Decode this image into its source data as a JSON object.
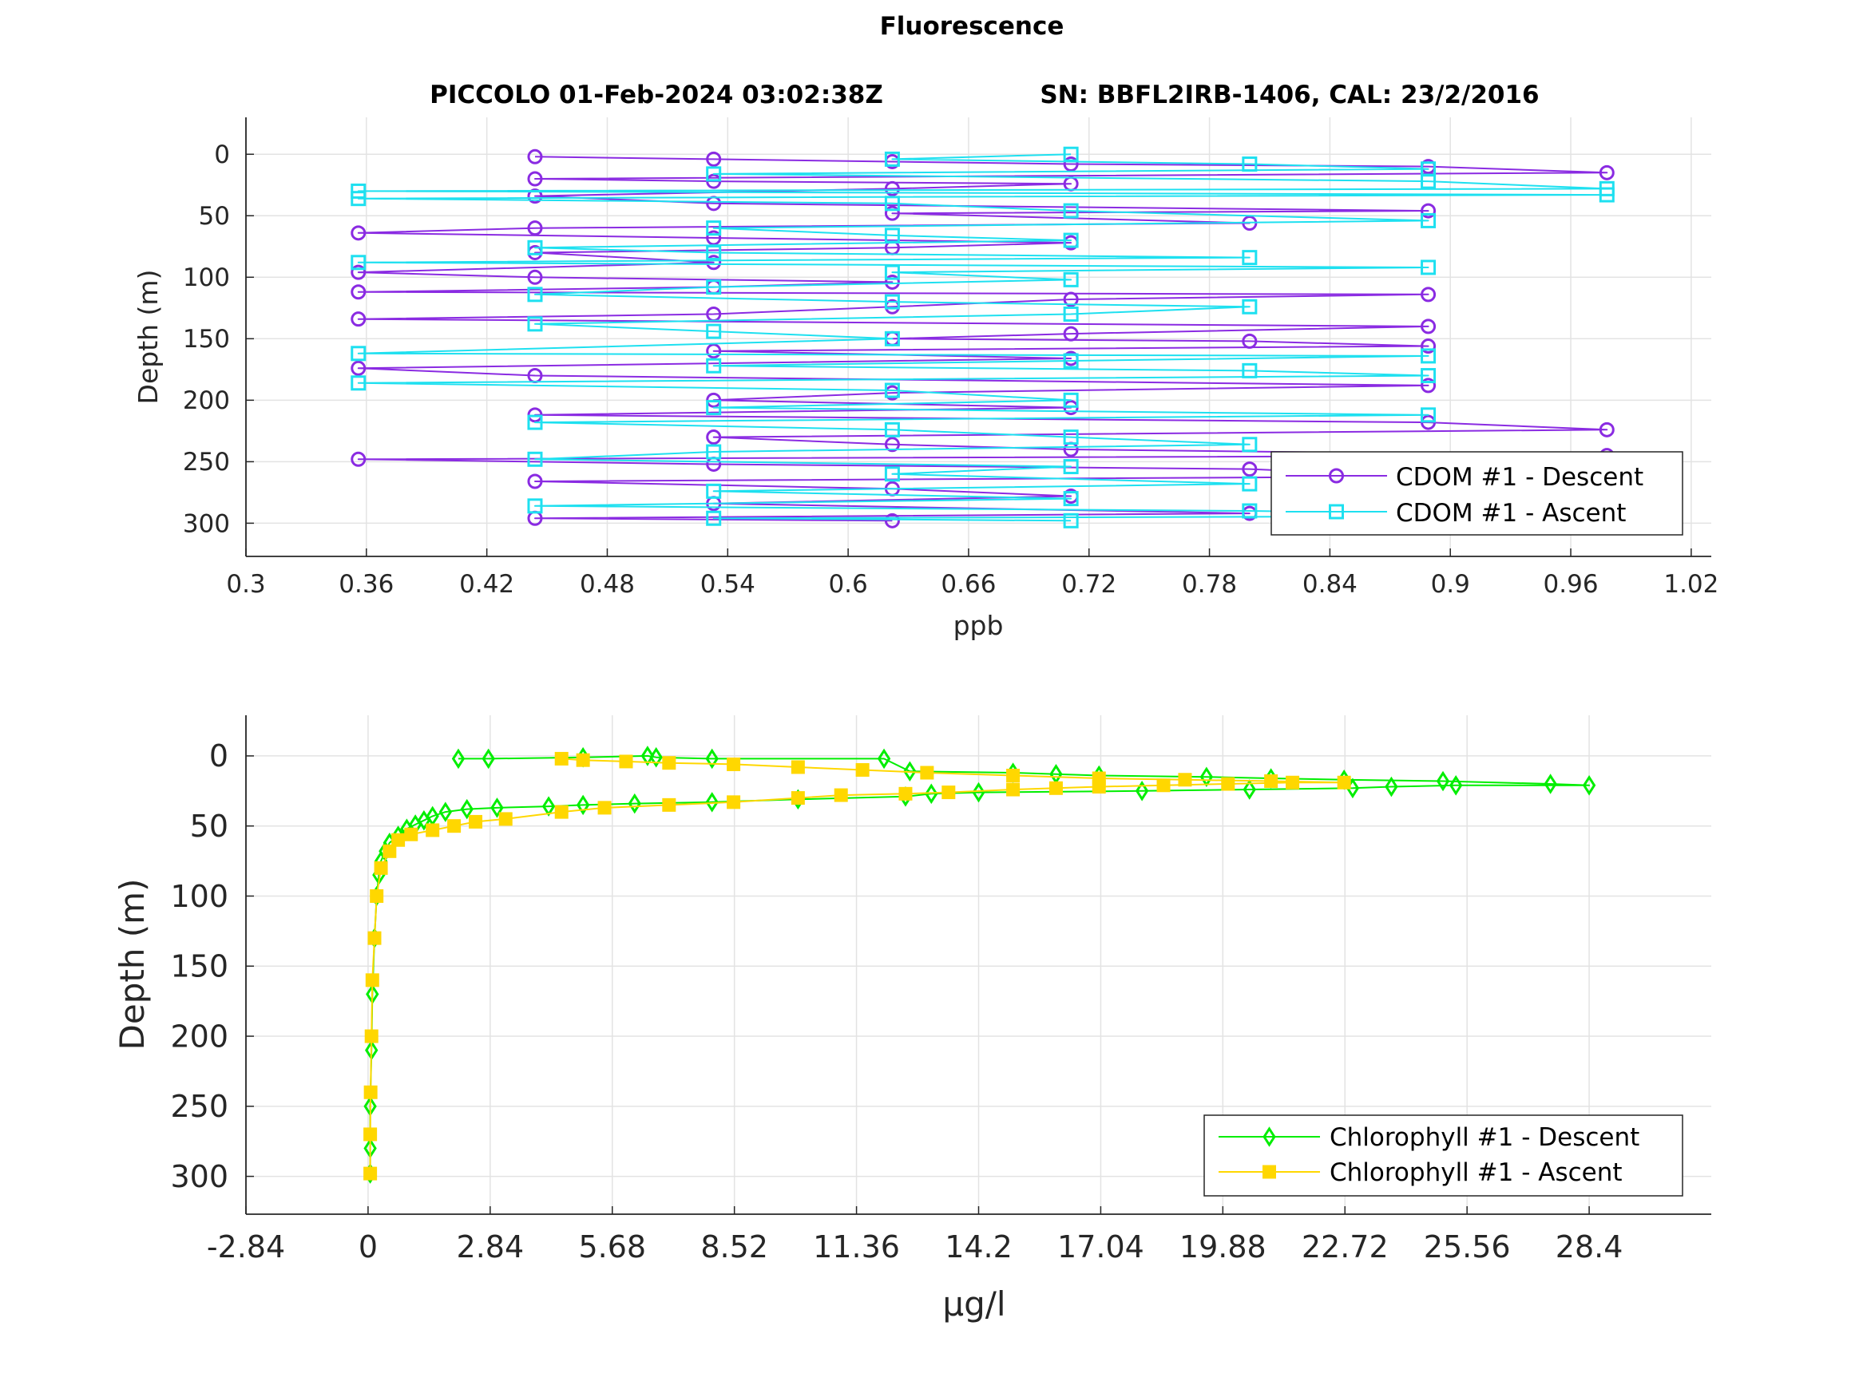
{
  "figure": {
    "title": "Fluorescence",
    "subtitle_left": "PICCOLO 01-Feb-2024 03:02:38Z",
    "subtitle_right": "SN: BBFL2IRB-1406, CAL: 23/2/2016"
  },
  "chart_data": [
    {
      "type": "line",
      "xlabel": "ppb",
      "ylabel": "Depth (m)",
      "xlim": [
        0.3,
        1.03
      ],
      "ylim": [
        -30,
        327
      ],
      "y_reversed": true,
      "grid": true,
      "legend_position": "bottom-right",
      "xticks": [
        "0.3",
        "0.36",
        "0.42",
        "0.48",
        "0.54",
        "0.6",
        "0.66",
        "0.72",
        "0.78",
        "0.84",
        "0.9",
        "0.96",
        "1.02"
      ],
      "yticks": [
        "0",
        "50",
        "100",
        "150",
        "200",
        "250",
        "300"
      ],
      "series": [
        {
          "name": "CDOM #1 - Descent",
          "color": "#8a2be2",
          "marker": "circle",
          "points": [
            [
              0.444,
              2
            ],
            [
              0.533,
              4
            ],
            [
              0.622,
              6
            ],
            [
              0.711,
              8
            ],
            [
              0.889,
              10
            ],
            [
              0.978,
              15
            ],
            [
              0.444,
              20
            ],
            [
              0.533,
              22
            ],
            [
              0.711,
              24
            ],
            [
              0.622,
              28
            ],
            [
              0.444,
              34
            ],
            [
              0.533,
              40
            ],
            [
              0.889,
              46
            ],
            [
              0.622,
              48
            ],
            [
              0.8,
              56
            ],
            [
              0.444,
              60
            ],
            [
              0.356,
              64
            ],
            [
              0.533,
              68
            ],
            [
              0.711,
              72
            ],
            [
              0.622,
              76
            ],
            [
              0.444,
              80
            ],
            [
              0.533,
              88
            ],
            [
              0.356,
              96
            ],
            [
              0.444,
              100
            ],
            [
              0.622,
              104
            ],
            [
              0.533,
              108
            ],
            [
              0.356,
              112
            ],
            [
              0.889,
              114
            ],
            [
              0.711,
              118
            ],
            [
              0.622,
              124
            ],
            [
              0.533,
              130
            ],
            [
              0.356,
              134
            ],
            [
              0.889,
              140
            ],
            [
              0.711,
              146
            ],
            [
              0.622,
              150
            ],
            [
              0.8,
              152
            ],
            [
              0.889,
              156
            ],
            [
              0.533,
              160
            ],
            [
              0.711,
              166
            ],
            [
              0.356,
              174
            ],
            [
              0.444,
              180
            ],
            [
              0.889,
              188
            ],
            [
              0.622,
              194
            ],
            [
              0.533,
              200
            ],
            [
              0.711,
              206
            ],
            [
              0.444,
              212
            ],
            [
              0.889,
              218
            ],
            [
              0.978,
              224
            ],
            [
              0.533,
              230
            ],
            [
              0.622,
              236
            ],
            [
              0.711,
              240
            ],
            [
              0.978,
              245
            ],
            [
              0.356,
              248
            ],
            [
              0.533,
              252
            ],
            [
              0.8,
              256
            ],
            [
              0.889,
              262
            ],
            [
              0.444,
              266
            ],
            [
              0.622,
              272
            ],
            [
              0.711,
              278
            ],
            [
              0.533,
              284
            ],
            [
              0.8,
              292
            ],
            [
              0.444,
              296
            ],
            [
              0.622,
              298
            ]
          ]
        },
        {
          "name": "CDOM #1 - Ascent",
          "color": "#1ee0f0",
          "marker": "square",
          "points": [
            [
              0.711,
              0
            ],
            [
              0.622,
              4
            ],
            [
              0.8,
              8
            ],
            [
              0.889,
              12
            ],
            [
              0.533,
              16
            ],
            [
              0.889,
              22
            ],
            [
              0.978,
              28
            ],
            [
              0.356,
              30
            ],
            [
              0.978,
              33
            ],
            [
              0.356,
              36
            ],
            [
              0.622,
              40
            ],
            [
              0.711,
              46
            ],
            [
              0.889,
              54
            ],
            [
              0.533,
              60
            ],
            [
              0.622,
              66
            ],
            [
              0.711,
              70
            ],
            [
              0.444,
              76
            ],
            [
              0.533,
              80
            ],
            [
              0.8,
              84
            ],
            [
              0.356,
              88
            ],
            [
              0.889,
              92
            ],
            [
              0.622,
              96
            ],
            [
              0.711,
              102
            ],
            [
              0.533,
              108
            ],
            [
              0.444,
              114
            ],
            [
              0.622,
              120
            ],
            [
              0.8,
              124
            ],
            [
              0.711,
              130
            ],
            [
              0.444,
              138
            ],
            [
              0.533,
              144
            ],
            [
              0.622,
              150
            ],
            [
              0.356,
              162
            ],
            [
              0.889,
              164
            ],
            [
              0.711,
              168
            ],
            [
              0.533,
              172
            ],
            [
              0.8,
              176
            ],
            [
              0.889,
              180
            ],
            [
              0.356,
              186
            ],
            [
              0.622,
              192
            ],
            [
              0.711,
              200
            ],
            [
              0.533,
              206
            ],
            [
              0.889,
              212
            ],
            [
              0.444,
              218
            ],
            [
              0.622,
              224
            ],
            [
              0.711,
              230
            ],
            [
              0.8,
              236
            ],
            [
              0.533,
              242
            ],
            [
              0.444,
              248
            ],
            [
              0.711,
              254
            ],
            [
              0.622,
              260
            ],
            [
              0.8,
              268
            ],
            [
              0.533,
              274
            ],
            [
              0.711,
              280
            ],
            [
              0.444,
              286
            ],
            [
              0.8,
              290
            ],
            [
              0.978,
              294
            ],
            [
              0.533,
              296
            ],
            [
              0.711,
              298
            ]
          ]
        }
      ]
    },
    {
      "type": "line",
      "xlabel": "μg/l",
      "ylabel": "Depth (m)",
      "xlim": [
        -2.84,
        31.24
      ],
      "ylim": [
        -29,
        327
      ],
      "y_reversed": true,
      "grid": true,
      "legend_position": "bottom-right",
      "xticks": [
        "-2.84",
        "0",
        "2.84",
        "5.68",
        "8.52",
        "11.36",
        "14.2",
        "17.04",
        "19.88",
        "22.72",
        "25.56",
        "28.4"
      ],
      "yticks": [
        "0",
        "50",
        "100",
        "150",
        "200",
        "250",
        "300"
      ],
      "series": [
        {
          "name": "Chlorophyll #1 - Descent",
          "color": "#00ee00",
          "marker": "diamond",
          "points": [
            [
              2.1,
              2
            ],
            [
              2.8,
              2
            ],
            [
              5.0,
              1
            ],
            [
              6.5,
              0
            ],
            [
              6.7,
              1
            ],
            [
              8.0,
              2
            ],
            [
              12.0,
              2
            ],
            [
              12.6,
              11
            ],
            [
              15.0,
              12
            ],
            [
              16.0,
              13
            ],
            [
              17.0,
              14
            ],
            [
              19.5,
              15
            ],
            [
              21.0,
              16
            ],
            [
              22.7,
              17
            ],
            [
              25.0,
              18
            ],
            [
              27.5,
              20
            ],
            [
              28.4,
              21
            ],
            [
              25.3,
              21
            ],
            [
              23.8,
              22
            ],
            [
              22.9,
              23
            ],
            [
              20.5,
              24
            ],
            [
              18.0,
              25
            ],
            [
              14.2,
              26
            ],
            [
              13.1,
              27
            ],
            [
              12.5,
              29
            ],
            [
              10.0,
              31
            ],
            [
              8.0,
              33
            ],
            [
              6.2,
              34
            ],
            [
              5.0,
              35
            ],
            [
              4.2,
              36
            ],
            [
              3.0,
              37
            ],
            [
              2.3,
              38
            ],
            [
              1.8,
              40
            ],
            [
              1.5,
              43
            ],
            [
              1.3,
              46
            ],
            [
              1.1,
              49
            ],
            [
              0.9,
              52
            ],
            [
              0.7,
              57
            ],
            [
              0.5,
              62
            ],
            [
              0.4,
              68
            ],
            [
              0.3,
              75
            ],
            [
              0.25,
              85
            ],
            [
              0.2,
              100
            ],
            [
              0.15,
              130
            ],
            [
              0.1,
              170
            ],
            [
              0.08,
              210
            ],
            [
              0.05,
              250
            ],
            [
              0.05,
              280
            ],
            [
              0.05,
              298
            ]
          ]
        },
        {
          "name": "Chlorophyll #1 - Ascent",
          "color": "#ffd700",
          "marker": "square",
          "points": [
            [
              0.05,
              298
            ],
            [
              0.05,
              270
            ],
            [
              0.06,
              240
            ],
            [
              0.08,
              200
            ],
            [
              0.1,
              160
            ],
            [
              0.15,
              130
            ],
            [
              0.2,
              100
            ],
            [
              0.3,
              80
            ],
            [
              0.5,
              68
            ],
            [
              0.7,
              60
            ],
            [
              1.0,
              56
            ],
            [
              1.5,
              53
            ],
            [
              2.0,
              50
            ],
            [
              2.5,
              47
            ],
            [
              3.2,
              45
            ],
            [
              4.5,
              40
            ],
            [
              5.5,
              37
            ],
            [
              7.0,
              35
            ],
            [
              8.5,
              33
            ],
            [
              10.0,
              30
            ],
            [
              11.0,
              28
            ],
            [
              12.5,
              27
            ],
            [
              13.5,
              26
            ],
            [
              15.0,
              24
            ],
            [
              16.0,
              23
            ],
            [
              17.0,
              22
            ],
            [
              18.5,
              21
            ],
            [
              20.0,
              20
            ],
            [
              21.5,
              19
            ],
            [
              22.7,
              19
            ],
            [
              21.0,
              18
            ],
            [
              19.0,
              17
            ],
            [
              17.0,
              16
            ],
            [
              15.0,
              14
            ],
            [
              13.0,
              12
            ],
            [
              11.5,
              10
            ],
            [
              10.0,
              8
            ],
            [
              8.5,
              6
            ],
            [
              7.0,
              5
            ],
            [
              6.0,
              4
            ],
            [
              5.0,
              3
            ],
            [
              4.5,
              2
            ]
          ]
        }
      ]
    }
  ]
}
